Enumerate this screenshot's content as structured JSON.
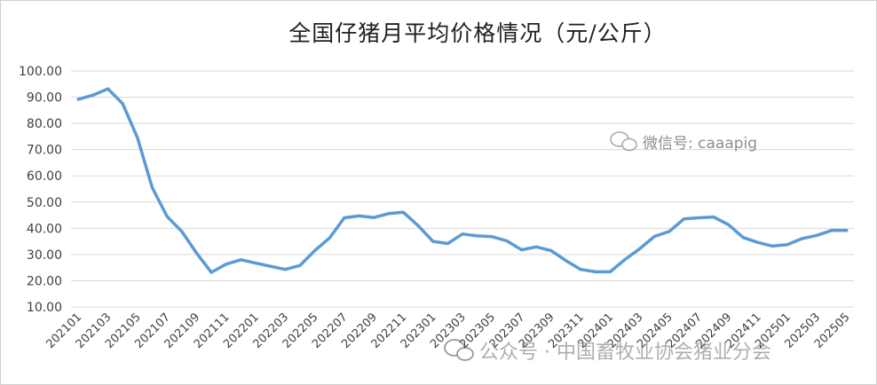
{
  "chart_data": {
    "type": "line",
    "title": "全国仔猪月平均价格情况（元/公斤）",
    "xlabel": "",
    "ylabel": "",
    "ylim": [
      10,
      100
    ],
    "ytick_labels": [
      "10.00",
      "20.00",
      "30.00",
      "40.00",
      "50.00",
      "60.00",
      "70.00",
      "80.00",
      "90.00",
      "100.00"
    ],
    "grid": true,
    "x": [
      "202101",
      "202102",
      "202103",
      "202104",
      "202105",
      "202106",
      "202107",
      "202108",
      "202109",
      "202110",
      "202111",
      "202112",
      "202201",
      "202202",
      "202203",
      "202204",
      "202205",
      "202206",
      "202207",
      "202208",
      "202209",
      "202210",
      "202211",
      "202212",
      "202301",
      "202302",
      "202303",
      "202304",
      "202305",
      "202306",
      "202307",
      "202308",
      "202309",
      "202310",
      "202311",
      "202312",
      "202401",
      "202402",
      "202403",
      "202404",
      "202405",
      "202406",
      "202407",
      "202408",
      "202409",
      "202410",
      "202411",
      "202412",
      "202501",
      "202502",
      "202503",
      "202504",
      "202505"
    ],
    "x_tick_labels": [
      "202101",
      "202103",
      "202105",
      "202107",
      "202109",
      "202111",
      "202201",
      "202203",
      "202205",
      "202207",
      "202209",
      "202211",
      "202301",
      "202303",
      "202305",
      "202307",
      "202309",
      "202311",
      "202401",
      "202403",
      "202405",
      "202407",
      "202409",
      "202411",
      "202501",
      "202503",
      "202505"
    ],
    "series": [
      {
        "color": "#5b9bd5",
        "values": [
          89.2,
          90.8,
          93.2,
          87.5,
          74.5,
          55.5,
          44.5,
          38.8,
          30.5,
          23.2,
          26.3,
          28.0,
          26.7,
          25.5,
          24.3,
          25.8,
          31.5,
          36.3,
          44.0,
          44.7,
          44.1,
          45.6,
          46.1,
          41.0,
          35.0,
          34.2,
          37.8,
          37.1,
          36.8,
          35.2,
          31.8,
          32.9,
          31.5,
          27.7,
          24.3,
          23.4,
          23.4,
          28.1,
          32.2,
          36.9,
          38.8,
          43.6,
          44.0,
          44.3,
          41.4,
          36.5,
          34.6,
          33.2,
          33.8,
          36.1,
          37.3,
          39.2,
          39.2
        ]
      }
    ]
  },
  "watermarks": {
    "wechat_id": "微信号: caaapig",
    "official_account": "公众号 · 中国畜牧业协会猪业分会"
  },
  "colors": {
    "line": "#5b9bd5",
    "grid": "#d9d9d9"
  }
}
